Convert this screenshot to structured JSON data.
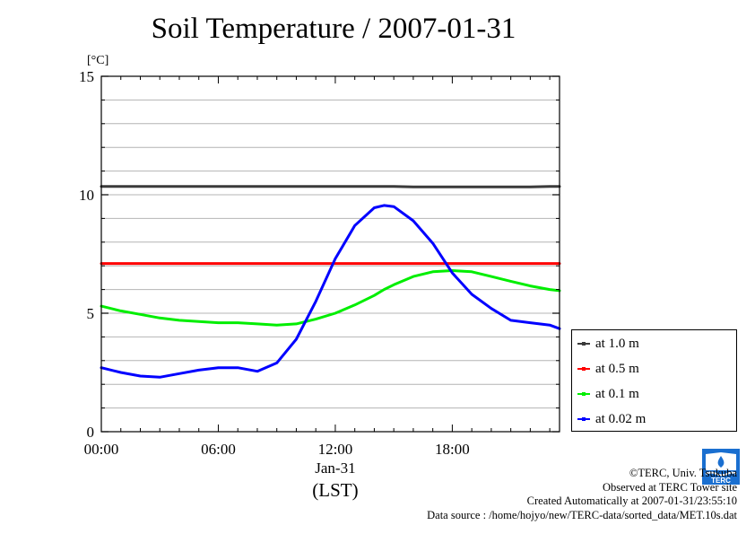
{
  "title": "Soil Temperature / 2007-01-31",
  "unit_label": "[°C]",
  "x_date_label": "Jan-31",
  "x_tz_label": "(LST)",
  "chart_data": {
    "type": "line",
    "title": "Soil Temperature / 2007-01-31",
    "ylabel": "[°C]",
    "xlabel": "(LST)",
    "ylim": [
      0,
      15
    ],
    "xlim": [
      0,
      23.5
    ],
    "y_ticks": [
      0,
      5,
      10,
      15
    ],
    "y_tick_labels": [
      "0",
      "5",
      "10",
      "15"
    ],
    "x_ticks": [
      0,
      6,
      12,
      18
    ],
    "x_tick_labels": [
      "00:00",
      "06:00",
      "12:00",
      "18:00"
    ],
    "grid": true,
    "legend_placement": "bottom-right outside",
    "x": [
      0,
      1,
      2,
      3,
      4,
      5,
      6,
      7,
      8,
      9,
      10,
      11,
      12,
      13,
      14,
      14.5,
      15,
      16,
      17,
      18,
      19,
      20,
      21,
      22,
      23,
      23.5
    ],
    "series": [
      {
        "name": "at 1.0 m",
        "color": "#3a3a3a",
        "values": [
          10.35,
          10.35,
          10.35,
          10.35,
          10.35,
          10.35,
          10.35,
          10.35,
          10.35,
          10.35,
          10.35,
          10.35,
          10.35,
          10.35,
          10.35,
          10.35,
          10.35,
          10.33,
          10.33,
          10.33,
          10.33,
          10.33,
          10.33,
          10.33,
          10.35,
          10.35
        ]
      },
      {
        "name": "at 0.5 m",
        "color": "#ff0000",
        "values": [
          7.1,
          7.1,
          7.1,
          7.1,
          7.1,
          7.1,
          7.1,
          7.1,
          7.1,
          7.1,
          7.1,
          7.1,
          7.1,
          7.1,
          7.1,
          7.1,
          7.1,
          7.1,
          7.1,
          7.1,
          7.1,
          7.1,
          7.1,
          7.1,
          7.1,
          7.1
        ]
      },
      {
        "name": "at 0.1 m",
        "color": "#00ee00",
        "values": [
          5.3,
          5.1,
          4.95,
          4.8,
          4.7,
          4.65,
          4.6,
          4.6,
          4.55,
          4.5,
          4.55,
          4.75,
          5.0,
          5.35,
          5.75,
          6.0,
          6.2,
          6.55,
          6.75,
          6.8,
          6.75,
          6.55,
          6.35,
          6.15,
          6.0,
          5.95
        ]
      },
      {
        "name": "at 0.02 m",
        "color": "#0000ff",
        "values": [
          2.7,
          2.5,
          2.35,
          2.3,
          2.45,
          2.6,
          2.7,
          2.7,
          2.55,
          2.9,
          3.9,
          5.5,
          7.3,
          8.7,
          9.45,
          9.55,
          9.5,
          8.9,
          7.95,
          6.7,
          5.8,
          5.2,
          4.7,
          4.6,
          4.5,
          4.35
        ]
      }
    ]
  },
  "credits": {
    "line1": "©TERC, Univ. Tsukuba",
    "line2": "Observed at TERC Tower site",
    "line3": "Created Automatically at 2007-01-31/23:55:10",
    "line4": "Data source : /home/hojyo/new/TERC-data/sorted_data/MET.10s.dat"
  },
  "logo": {
    "text": "TERC",
    "color": "#1a6fd0"
  }
}
